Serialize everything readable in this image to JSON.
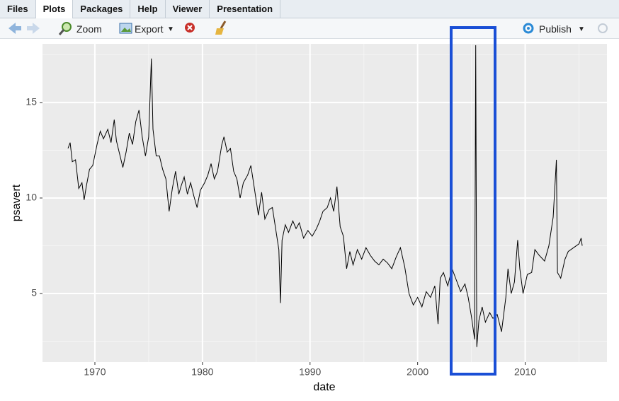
{
  "tabs": [
    "Files",
    "Plots",
    "Packages",
    "Help",
    "Viewer",
    "Presentation"
  ],
  "toolbar": {
    "zoom": "Zoom",
    "export": "Export",
    "publish": "Publish"
  },
  "chart_data": {
    "type": "line",
    "x_label": "date",
    "y_label": "psavert",
    "color": "#000000",
    "grid": true,
    "x": [
      1967.5,
      1967.7,
      1967.9,
      1968.2,
      1968.5,
      1968.8,
      1969.0,
      1969.2,
      1969.5,
      1969.8,
      1970.2,
      1970.5,
      1970.8,
      1971.2,
      1971.5,
      1971.8,
      1972.0,
      1972.3,
      1972.6,
      1972.9,
      1973.2,
      1973.5,
      1973.8,
      1974.1,
      1974.4,
      1974.7,
      1975.0,
      1975.25,
      1975.4,
      1975.7,
      1976.0,
      1976.3,
      1976.6,
      1976.9,
      1977.2,
      1977.5,
      1977.8,
      1978.0,
      1978.3,
      1978.6,
      1978.9,
      1979.2,
      1979.5,
      1979.8,
      1980.2,
      1980.5,
      1980.8,
      1981.1,
      1981.4,
      1981.8,
      1982.0,
      1982.3,
      1982.6,
      1982.9,
      1983.2,
      1983.5,
      1983.8,
      1984.2,
      1984.5,
      1984.8,
      1985.2,
      1985.5,
      1985.8,
      1986.2,
      1986.5,
      1986.8,
      1987.1,
      1987.25,
      1987.4,
      1987.7,
      1988.0,
      1988.4,
      1988.7,
      1989.0,
      1989.4,
      1989.8,
      1990.2,
      1990.6,
      1990.9,
      1991.2,
      1991.6,
      1991.9,
      1992.2,
      1992.5,
      1992.8,
      1993.1,
      1993.4,
      1993.7,
      1994.0,
      1994.4,
      1994.8,
      1995.2,
      1995.6,
      1996.0,
      1996.4,
      1996.8,
      1997.2,
      1997.6,
      1998.0,
      1998.4,
      1998.8,
      1999.2,
      1999.6,
      2000.0,
      2000.4,
      2000.8,
      2001.2,
      2001.6,
      2001.9,
      2002.1,
      2002.4,
      2002.8,
      2003.2,
      2003.6,
      2004.0,
      2004.4,
      2004.7,
      2005.0,
      2005.3,
      2005.4,
      2005.5,
      2005.7,
      2006.0,
      2006.3,
      2006.7,
      2007.0,
      2007.4,
      2007.8,
      2008.2,
      2008.4,
      2008.7,
      2009.0,
      2009.3,
      2009.5,
      2009.8,
      2010.2,
      2010.6,
      2010.9,
      2011.3,
      2011.8,
      2012.2,
      2012.6,
      2012.9,
      2013.0,
      2013.3,
      2013.7,
      2014.0,
      2014.5,
      2015.0,
      2015.2,
      2015.3
    ],
    "values": [
      12.6,
      12.9,
      11.9,
      12.0,
      10.5,
      10.8,
      9.9,
      10.6,
      11.5,
      11.7,
      12.8,
      13.5,
      13.1,
      13.6,
      12.9,
      14.1,
      13.0,
      12.3,
      11.6,
      12.4,
      13.4,
      12.8,
      14.0,
      14.6,
      13.2,
      12.2,
      13.2,
      17.3,
      13.6,
      12.2,
      12.2,
      11.5,
      11.0,
      9.3,
      10.5,
      11.4,
      10.2,
      10.6,
      11.1,
      10.2,
      10.8,
      10.1,
      9.5,
      10.4,
      10.8,
      11.2,
      11.8,
      11.0,
      11.4,
      12.8,
      13.2,
      12.4,
      12.6,
      11.4,
      11.0,
      10.0,
      10.8,
      11.2,
      11.7,
      10.6,
      9.1,
      10.3,
      8.9,
      9.4,
      9.5,
      8.4,
      7.3,
      4.5,
      7.8,
      8.6,
      8.2,
      8.8,
      8.4,
      8.7,
      7.9,
      8.3,
      8.0,
      8.4,
      8.8,
      9.3,
      9.5,
      10.0,
      9.3,
      10.6,
      8.5,
      8.0,
      6.3,
      7.2,
      6.5,
      7.3,
      6.8,
      7.4,
      7.0,
      6.7,
      6.5,
      6.8,
      6.6,
      6.3,
      6.9,
      7.4,
      6.4,
      5.0,
      4.4,
      4.8,
      4.3,
      5.1,
      4.8,
      5.4,
      3.4,
      5.8,
      6.1,
      5.4,
      6.3,
      5.7,
      5.1,
      5.5,
      4.8,
      3.8,
      2.6,
      18.0,
      2.2,
      3.6,
      4.3,
      3.5,
      4.0,
      3.7,
      3.9,
      3.0,
      4.8,
      6.3,
      5.0,
      5.6,
      7.8,
      6.3,
      5.0,
      6.0,
      6.1,
      7.3,
      7.0,
      6.7,
      7.5,
      9.0,
      12.0,
      6.1,
      5.8,
      6.8,
      7.2,
      7.4,
      7.6,
      7.9,
      7.5
    ],
    "xlim": [
      1965.13,
      2017.6
    ],
    "xticks": [
      1970,
      1980,
      1990,
      2000,
      2010
    ],
    "ylim": [
      1.41,
      18.07
    ],
    "yticks": [
      5,
      10,
      15
    ]
  }
}
